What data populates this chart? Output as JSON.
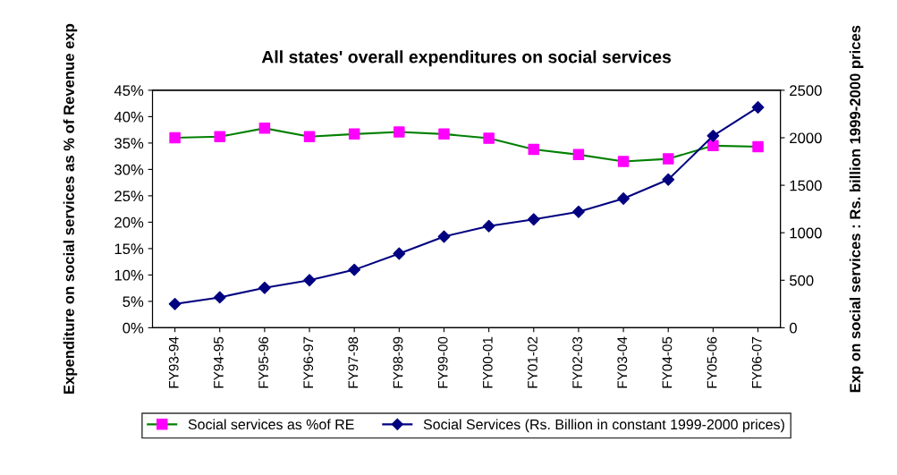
{
  "chart_data": {
    "type": "line",
    "title": "All states' overall expenditures on social services",
    "ylabel": "Expenditure on social services as % of Revenue exp",
    "y2label": "Exp on social services : Rs. billion 1999-2000 prices",
    "categories": [
      "FY93-94",
      "FY94-95",
      "FY95-96",
      "FY96-97",
      "FY97-98",
      "FY98-99",
      "FY99-00",
      "FY00-01",
      "FY01-02",
      "FY02-03",
      "FY03-04",
      "FY04-05",
      "FY05-06",
      "FY06-07"
    ],
    "series": [
      {
        "name": "Social services as %of RE",
        "color": "#008000",
        "colors": [
          "#ff00ff",
          "#ff00ff",
          "#ff00ff",
          "#ff00ff",
          "#ff00ff",
          "#ff00ff",
          "#ff00ff",
          "#ff00ff",
          "#ff00ff",
          "#ff00ff",
          "#ff00ff",
          "#ff00ff",
          "#ff00ff",
          "#ff00ff"
        ],
        "marker": "square",
        "values": [
          0.36,
          0.362,
          0.378,
          0.362,
          0.367,
          0.371,
          0.367,
          0.359,
          0.338,
          0.328,
          0.315,
          0.32,
          0.345,
          0.343
        ]
      },
      {
        "name": "Social Services (Rs. Billion in constant 1999-2000 prices)",
        "color": "#000080",
        "marker": "diamond",
        "axis": "y2",
        "values": [
          250,
          320,
          420,
          500,
          610,
          780,
          960,
          1070,
          1140,
          1220,
          1360,
          1560,
          2020,
          2320
        ]
      }
    ],
    "ylim": [
      0,
      0.45
    ],
    "yticks": [
      {
        "value": 0,
        "label": "0%"
      },
      {
        "value": 0.05,
        "label": "5%"
      },
      {
        "value": 0.1,
        "label": "10%"
      },
      {
        "value": 0.15,
        "label": "15%"
      },
      {
        "value": 0.2,
        "label": "20%"
      },
      {
        "value": 0.25,
        "label": "25%"
      },
      {
        "value": 0.3,
        "label": "30%"
      },
      {
        "value": 0.35,
        "label": "35%"
      },
      {
        "value": 0.4,
        "label": "40%"
      },
      {
        "value": 0.45,
        "label": "45%"
      }
    ],
    "y2lim": [
      0,
      2500
    ],
    "y2ticks": [
      0,
      500,
      1000,
      1500,
      2000,
      2500
    ],
    "legend": "bottom",
    "grid": false
  }
}
